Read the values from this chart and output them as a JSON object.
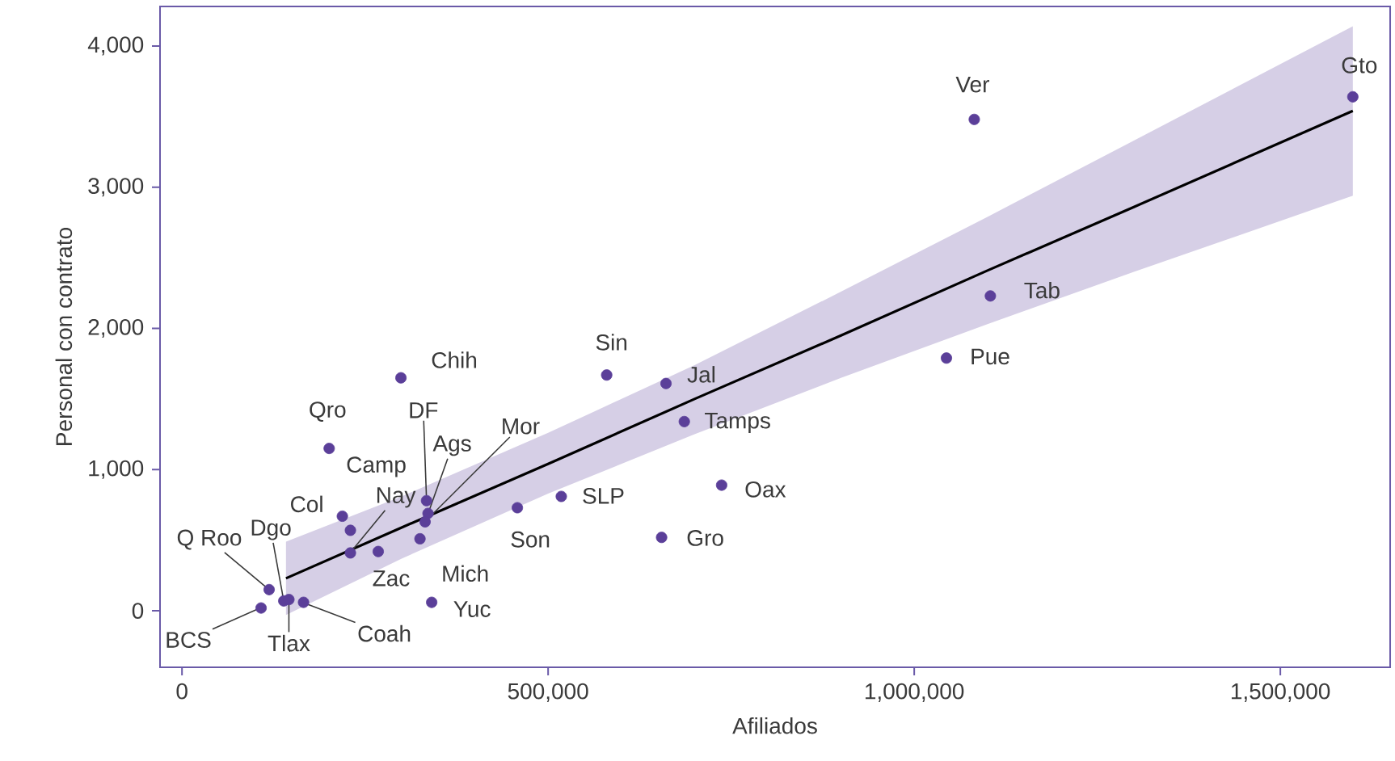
{
  "chart_data": {
    "type": "scatter",
    "xlabel": "Afiliados",
    "ylabel": "Personal con contrato",
    "xlim": [
      -30000,
      1650000
    ],
    "ylim": [
      -400,
      4280
    ],
    "xticks": [
      0,
      {
        "value": 500000,
        "label": "500,000"
      },
      {
        "value": 1000000,
        "label": "1,000,000"
      },
      {
        "value": 1500000,
        "label": "1,500,000"
      }
    ],
    "yticks": [
      0,
      {
        "value": 1000,
        "label": "1,000"
      },
      {
        "value": 2000,
        "label": "2,000"
      },
      {
        "value": 3000,
        "label": "3,000"
      },
      {
        "value": 4000,
        "label": "4,000"
      }
    ],
    "grid": false,
    "marker": "circle",
    "series": [
      {
        "type": "line",
        "marker": "none",
        "color": "#000000",
        "x": [
          142000,
          300000,
          500000,
          700000,
          900000,
          1100000,
          1300000,
          1599000
        ],
        "values": [
          230,
          590,
          1040,
          1500,
          1950,
          2410,
          2860,
          3540
        ],
        "lower": [
          -30,
          370,
          830,
          1250,
          1650,
          2030,
          2400,
          2940
        ],
        "upper": [
          490,
          810,
          1260,
          1740,
          2260,
          2790,
          3330,
          4140
        ]
      },
      {
        "color": "#5b3f99",
        "x": [
          1082000,
          1599000,
          1104000,
          1044000,
          580000,
          661000,
          686000,
          737000,
          655000,
          518000,
          458000,
          299000,
          201000,
          219000,
          230000,
          230000,
          268000,
          334000,
          336000,
          332000,
          325000,
          341000,
          119000,
          108000,
          139000,
          146000,
          166000
        ],
        "values": [
          3480,
          3640,
          2230,
          1790,
          1670,
          1610,
          1340,
          890,
          520,
          810,
          730,
          1650,
          1150,
          670,
          570,
          410,
          420,
          780,
          690,
          630,
          510,
          60,
          150,
          20,
          70,
          80,
          60
        ]
      }
    ],
    "annotations": [
      {
        "text": "Ver",
        "x": 1082000,
        "y": 3475
      },
      {
        "text": "Gto",
        "x": 1599000,
        "y": 3635
      },
      {
        "text": "Tab",
        "x": 1104000,
        "y": 2225
      },
      {
        "text": "Pue",
        "x": 1044000,
        "y": 1789
      },
      {
        "text": "Sin",
        "x": 580000,
        "y": 1674
      },
      {
        "text": "Jal",
        "x": 661000,
        "y": 1606
      },
      {
        "text": "Tamps",
        "x": 686000,
        "y": 1342
      },
      {
        "text": "Oax",
        "x": 737000,
        "y": 894
      },
      {
        "text": "Gro",
        "x": 655000,
        "y": 516
      },
      {
        "text": "SLP",
        "x": 518000,
        "y": 814
      },
      {
        "text": "Son",
        "x": 458000,
        "y": 734
      },
      {
        "text": "Chih",
        "x": 299000,
        "y": 1651
      },
      {
        "text": "Qro",
        "x": 201000,
        "y": 1147
      },
      {
        "text": "Col",
        "x": 219000,
        "y": 665
      },
      {
        "text": "Camp",
        "x": 230000,
        "y": 573
      },
      {
        "text": "Nay",
        "x": 230000,
        "y": 413
      },
      {
        "text": "Zac",
        "x": 268000,
        "y": 424
      },
      {
        "text": "DF",
        "x": 334000,
        "y": 780
      },
      {
        "text": "Ags",
        "x": 336000,
        "y": 688
      },
      {
        "text": "Mor",
        "x": 332000,
        "y": 631
      },
      {
        "text": "Mich",
        "x": 325000,
        "y": 505
      },
      {
        "text": "Yuc",
        "x": 341000,
        "y": 57
      },
      {
        "text": "Q Roo",
        "x": 119000,
        "y": 149
      },
      {
        "text": "BCS",
        "x": 108000,
        "y": 23
      },
      {
        "text": "Dgo",
        "x": 139000,
        "y": 69
      },
      {
        "text": "Tlax",
        "x": 146000,
        "y": 80
      },
      {
        "text": "Coah",
        "x": 166000,
        "y": 57
      }
    ]
  }
}
